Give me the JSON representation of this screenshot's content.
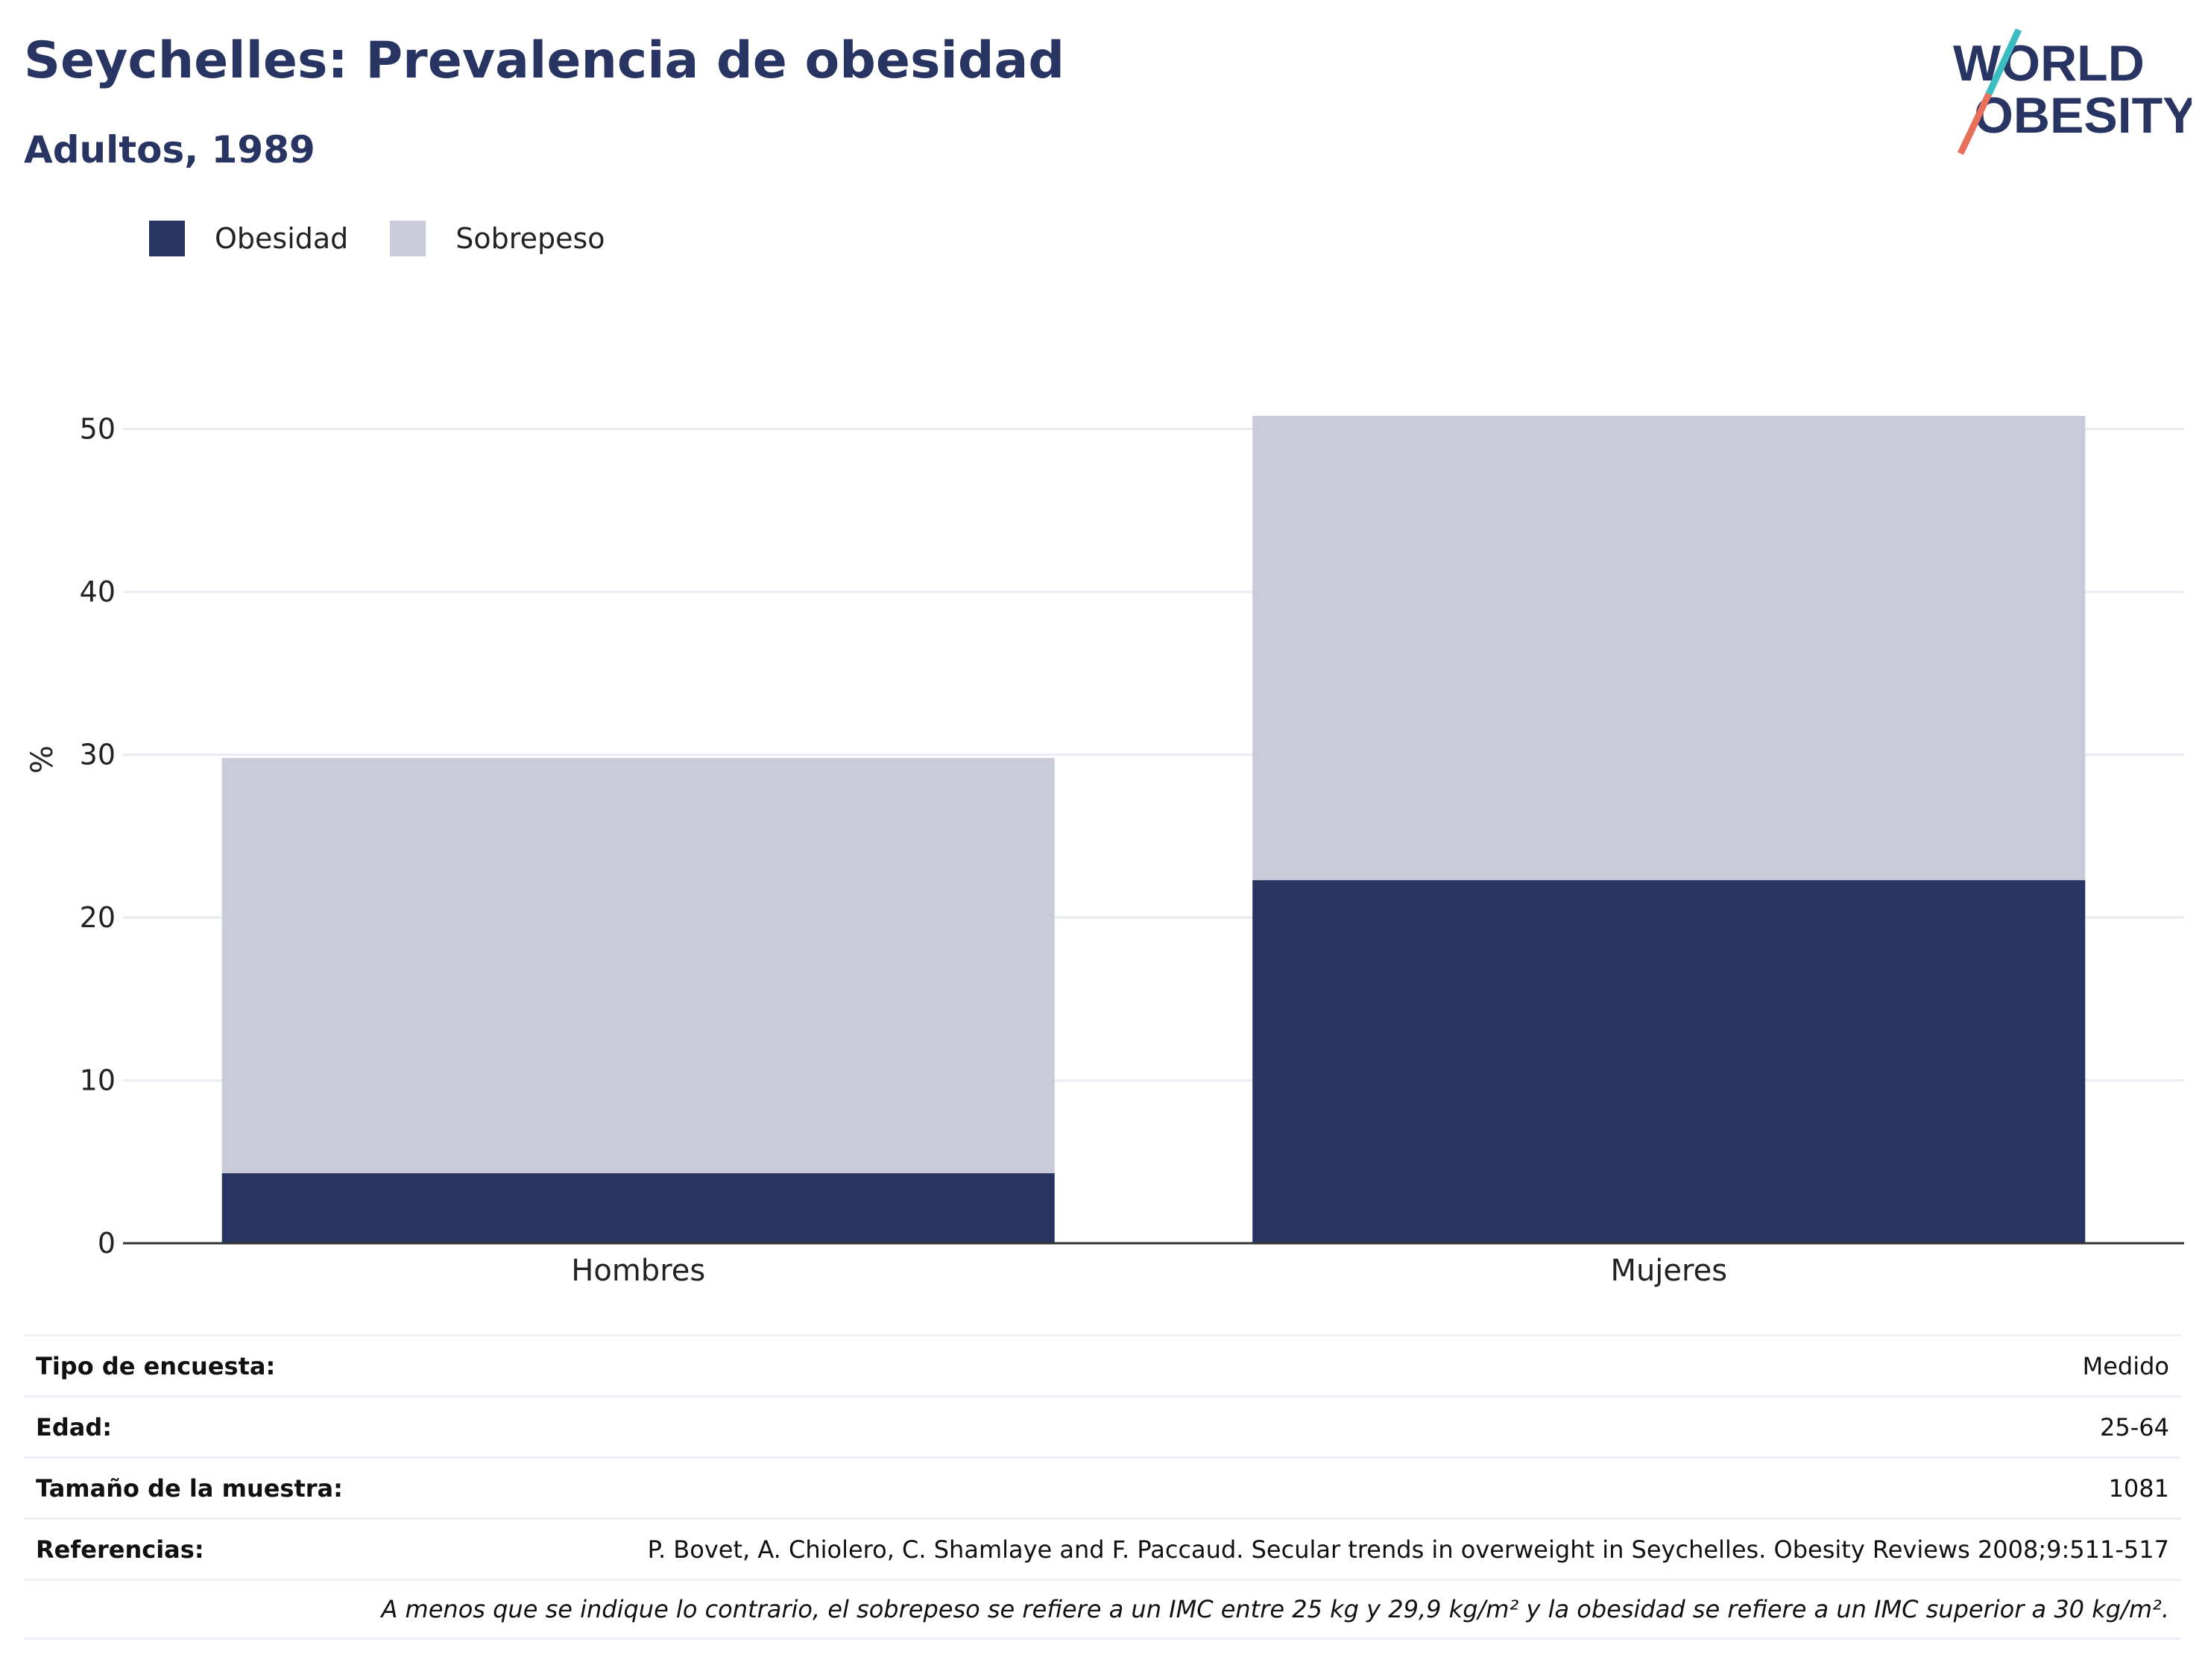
{
  "header": {
    "title": "Seychelles: Prevalencia de obesidad",
    "subtitle": "Adultos, 1989"
  },
  "logo": {
    "line1": "WORLD",
    "line2": "OBESITY",
    "accent_colors": [
      "#3bbcc0",
      "#e8705a"
    ]
  },
  "legend": {
    "items": [
      {
        "label": "Obesidad",
        "color": "#283462"
      },
      {
        "label": "Sobrepeso",
        "color": "#c9ccd8"
      }
    ]
  },
  "chart_data": {
    "type": "bar",
    "stacked": true,
    "categories": [
      "Hombres",
      "Mujeres"
    ],
    "series": [
      {
        "name": "Obesidad",
        "color": "#283462",
        "values": [
          4.3,
          22.3
        ]
      },
      {
        "name": "Sobrepeso",
        "color": "#c9ccd8",
        "values": [
          25.5,
          28.5
        ]
      }
    ],
    "ylabel": "%",
    "xlabel": "",
    "ylim": [
      0,
      55
    ],
    "yticks": [
      0,
      10,
      20,
      30,
      40,
      50
    ],
    "grid": true,
    "legend_position": "top-left"
  },
  "info_table": {
    "rows": [
      {
        "key": "Tipo de encuesta:",
        "value": "Medido"
      },
      {
        "key": "Edad:",
        "value": "25-64"
      },
      {
        "key": "Tamaño de la muestra:",
        "value": "1081"
      },
      {
        "key": "Referencias:",
        "value": "P. Bovet, A. Chiolero, C. Shamlaye and F. Paccaud. Secular trends in overweight in Seychelles. Obesity Reviews 2008;9:511-517"
      }
    ],
    "note": "A menos que se indique lo contrario, el sobrepeso se refiere a un IMC entre 25 kg y 29,9 kg/m² y la obesidad se refiere a un IMC superior a 30 kg/m²."
  }
}
